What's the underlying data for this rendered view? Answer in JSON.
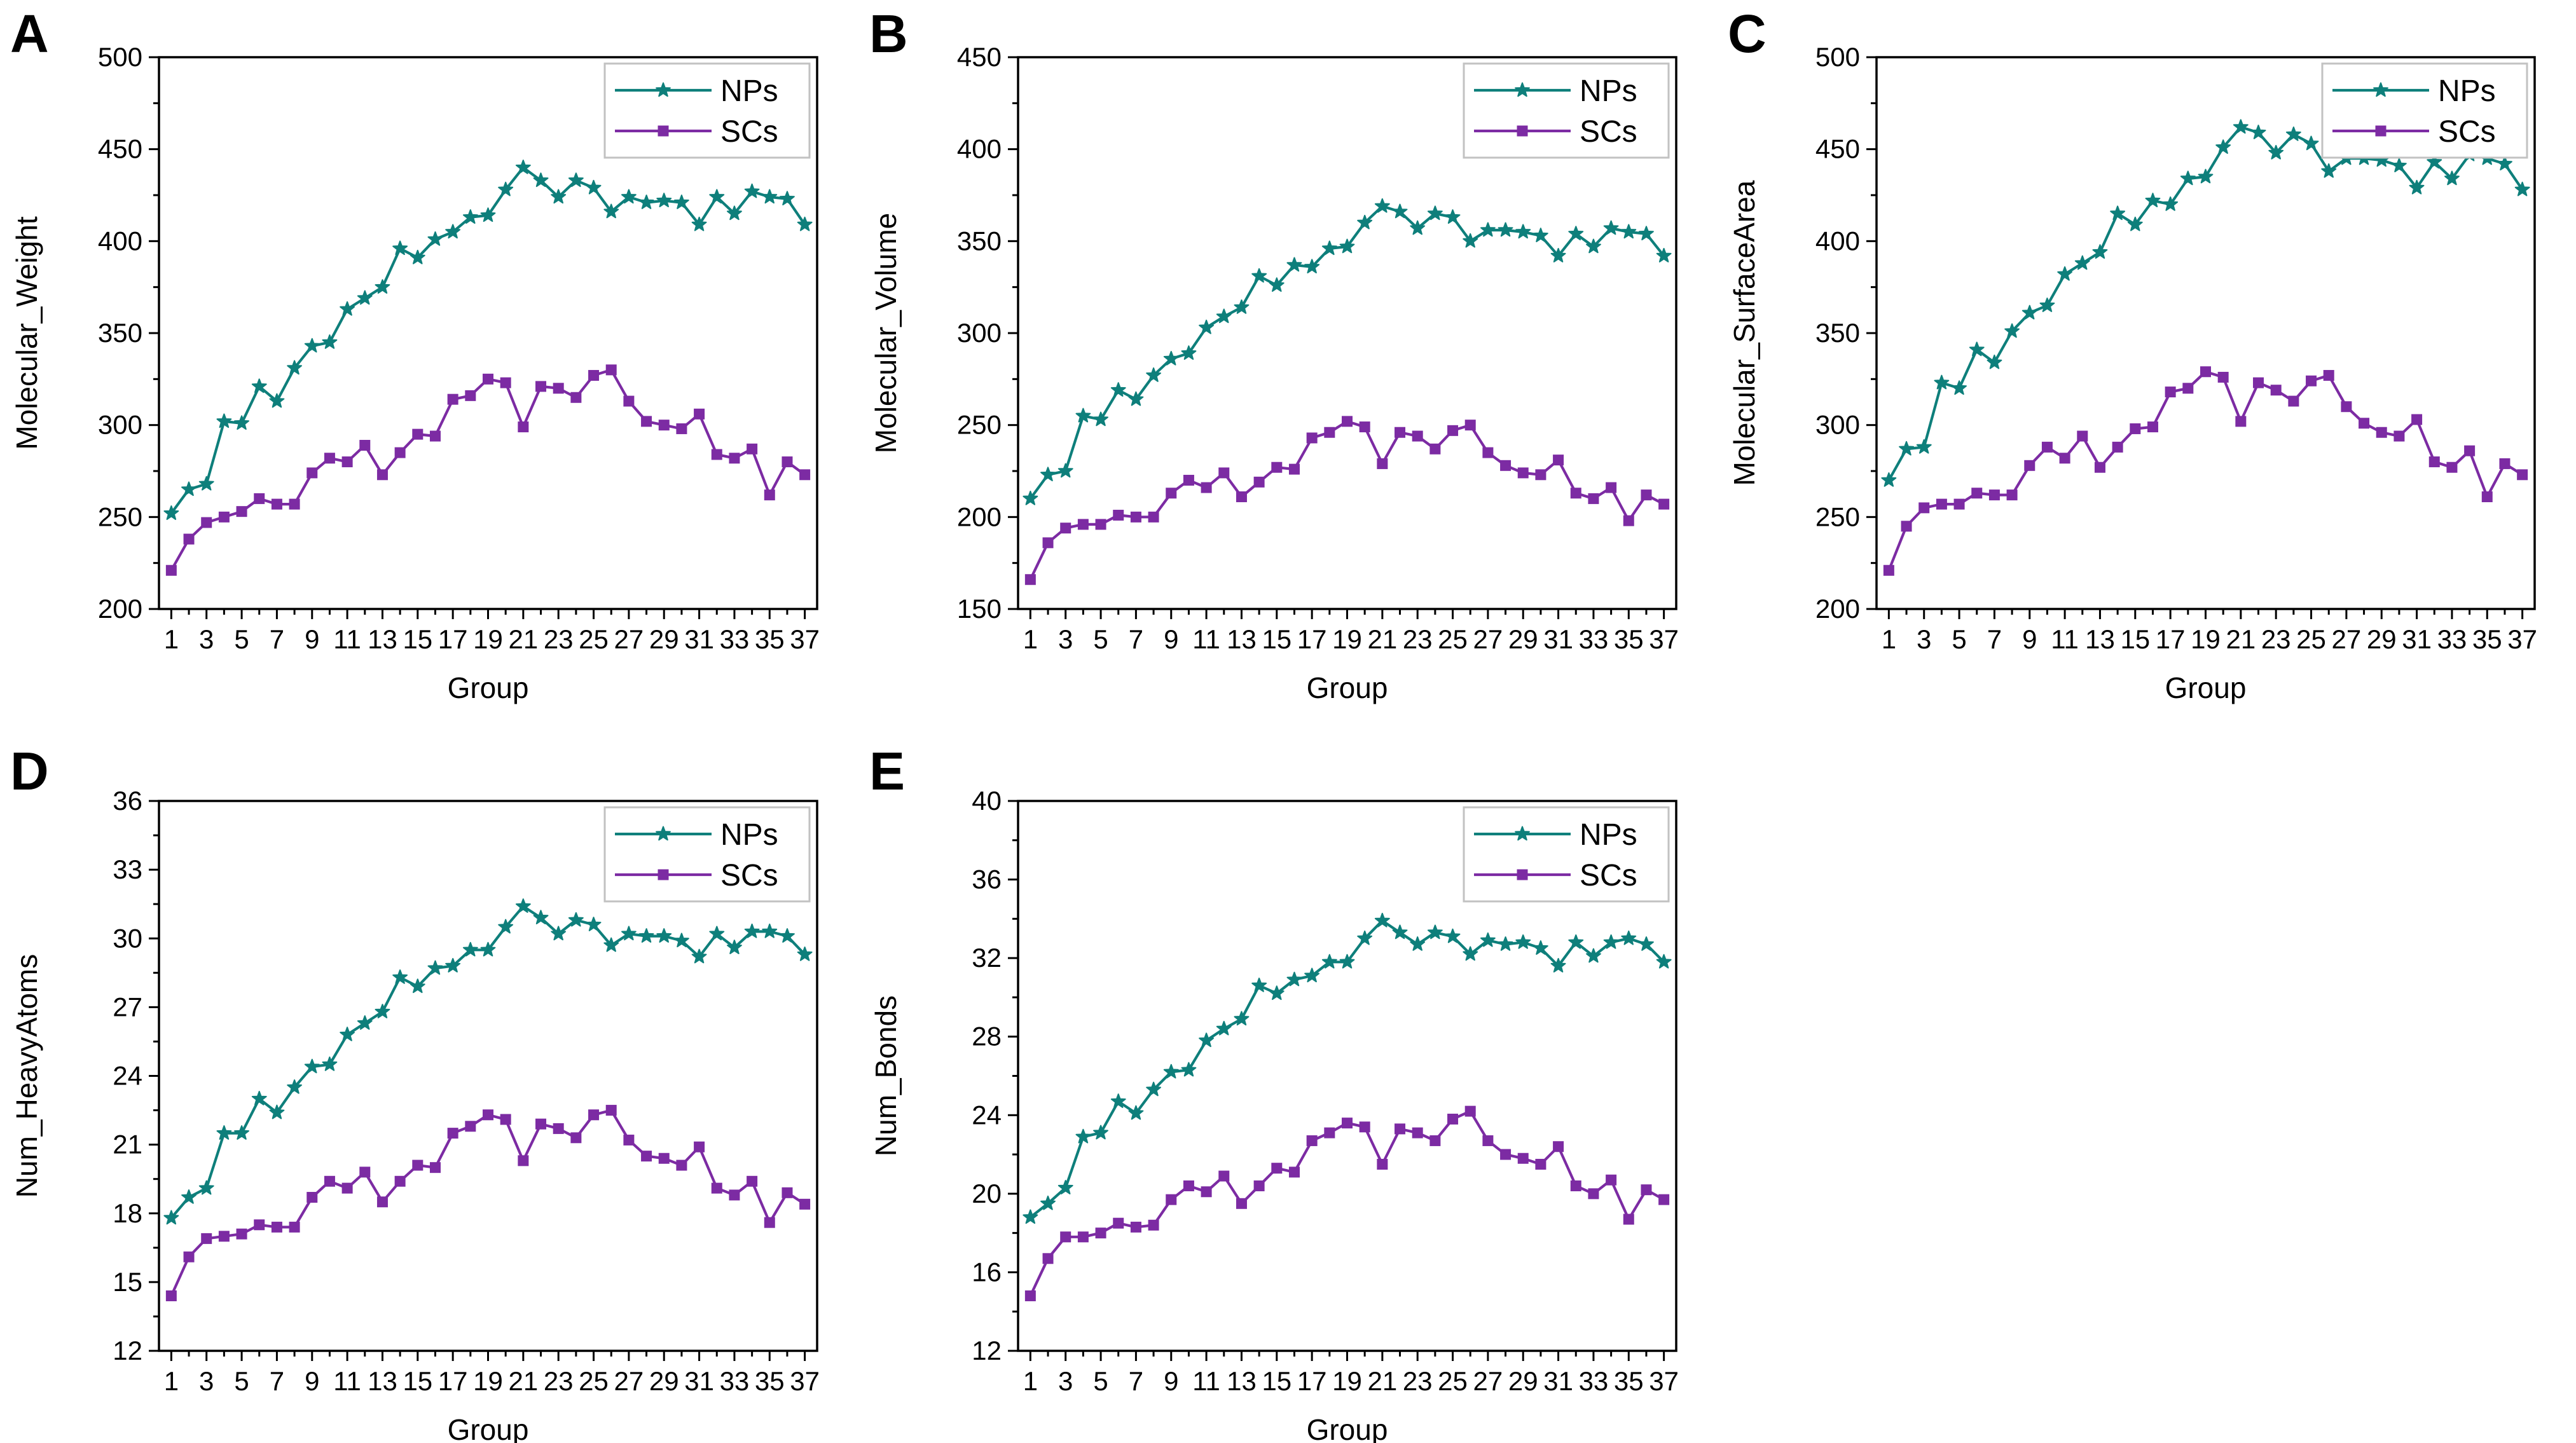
{
  "page": {
    "background": "#ffffff"
  },
  "colors": {
    "nps": "#0E7F7B",
    "scs": "#7C2BA3",
    "axis": "#000000",
    "text": "#000000",
    "legend_border": "#C2C2C2",
    "legend_fill": "#FFFFFF"
  },
  "legend": {
    "entries": [
      "NPs",
      "SCs"
    ],
    "position": "top-right"
  },
  "axis": {
    "xlabel": "Group",
    "x_major_tick_labels": [
      "1",
      "3",
      "5",
      "7",
      "9",
      "11",
      "13",
      "15",
      "17",
      "19",
      "21",
      "23",
      "25",
      "27",
      "29",
      "31",
      "33",
      "35",
      "37"
    ]
  },
  "chart_data": [
    {
      "type": "line",
      "panel_letter": "A",
      "ylabel": "Molecular_Weight",
      "xlabel": "Group",
      "ylim": [
        200,
        500
      ],
      "yticks": [
        200,
        250,
        300,
        350,
        400,
        450,
        500
      ],
      "grid": false,
      "legend_position": "top-right",
      "x": [
        1,
        2,
        3,
        4,
        5,
        6,
        7,
        8,
        9,
        10,
        11,
        12,
        13,
        14,
        15,
        16,
        17,
        18,
        19,
        20,
        21,
        22,
        23,
        24,
        25,
        26,
        27,
        28,
        29,
        30,
        31,
        32,
        33,
        34,
        35,
        36,
        37
      ],
      "series": [
        {
          "name": "NPs",
          "color_key": "nps",
          "marker": "star",
          "values": [
            252,
            265,
            268,
            302,
            301,
            321,
            313,
            331,
            343,
            345,
            363,
            369,
            375,
            396,
            391,
            401,
            405,
            413,
            414,
            428,
            440,
            433,
            424,
            433,
            429,
            416,
            424,
            421,
            422,
            421,
            409,
            424,
            415,
            427,
            424,
            423,
            409
          ]
        },
        {
          "name": "SCs",
          "color_key": "scs",
          "marker": "square",
          "values": [
            221,
            238,
            247,
            250,
            253,
            260,
            257,
            257,
            274,
            282,
            280,
            289,
            273,
            285,
            295,
            294,
            314,
            316,
            325,
            323,
            299,
            321,
            320,
            315,
            327,
            330,
            313,
            302,
            300,
            298,
            306,
            284,
            282,
            287,
            262,
            280,
            273
          ]
        }
      ]
    },
    {
      "type": "line",
      "panel_letter": "B",
      "ylabel": "Molecular_Volume",
      "xlabel": "Group",
      "ylim": [
        150,
        450
      ],
      "yticks": [
        150,
        200,
        250,
        300,
        350,
        400,
        450
      ],
      "grid": false,
      "legend_position": "top-right",
      "x": [
        1,
        2,
        3,
        4,
        5,
        6,
        7,
        8,
        9,
        10,
        11,
        12,
        13,
        14,
        15,
        16,
        17,
        18,
        19,
        20,
        21,
        22,
        23,
        24,
        25,
        26,
        27,
        28,
        29,
        30,
        31,
        32,
        33,
        34,
        35,
        36,
        37
      ],
      "series": [
        {
          "name": "NPs",
          "color_key": "nps",
          "marker": "star",
          "values": [
            210,
            223,
            225,
            255,
            253,
            269,
            264,
            277,
            286,
            289,
            303,
            309,
            314,
            331,
            326,
            337,
            336,
            346,
            347,
            360,
            369,
            366,
            357,
            365,
            363,
            350,
            356,
            356,
            355,
            353,
            342,
            354,
            347,
            357,
            355,
            354,
            342
          ]
        },
        {
          "name": "SCs",
          "color_key": "scs",
          "marker": "square",
          "values": [
            166,
            186,
            194,
            196,
            196,
            201,
            200,
            200,
            213,
            220,
            216,
            224,
            211,
            219,
            227,
            226,
            243,
            246,
            252,
            249,
            229,
            246,
            244,
            237,
            247,
            250,
            235,
            228,
            224,
            223,
            231,
            213,
            210,
            216,
            198,
            212,
            207
          ]
        }
      ]
    },
    {
      "type": "line",
      "panel_letter": "C",
      "ylabel": "Molecular_SurfaceArea",
      "xlabel": "Group",
      "ylim": [
        200,
        500
      ],
      "yticks": [
        200,
        250,
        300,
        350,
        400,
        450,
        500
      ],
      "grid": false,
      "legend_position": "top-right",
      "x": [
        1,
        2,
        3,
        4,
        5,
        6,
        7,
        8,
        9,
        10,
        11,
        12,
        13,
        14,
        15,
        16,
        17,
        18,
        19,
        20,
        21,
        22,
        23,
        24,
        25,
        26,
        27,
        28,
        29,
        30,
        31,
        32,
        33,
        34,
        35,
        36,
        37
      ],
      "series": [
        {
          "name": "NPs",
          "color_key": "nps",
          "marker": "star",
          "values": [
            270,
            287,
            288,
            323,
            320,
            341,
            334,
            351,
            361,
            365,
            382,
            388,
            394,
            415,
            409,
            422,
            420,
            434,
            435,
            451,
            462,
            459,
            448,
            458,
            453,
            438,
            445,
            445,
            444,
            441,
            429,
            443,
            434,
            447,
            445,
            442,
            428
          ]
        },
        {
          "name": "SCs",
          "color_key": "scs",
          "marker": "square",
          "values": [
            221,
            245,
            255,
            257,
            257,
            263,
            262,
            262,
            278,
            288,
            282,
            294,
            277,
            288,
            298,
            299,
            318,
            320,
            329,
            326,
            302,
            323,
            319,
            313,
            324,
            327,
            310,
            301,
            296,
            294,
            303,
            280,
            277,
            286,
            261,
            279,
            273
          ]
        }
      ]
    },
    {
      "type": "line",
      "panel_letter": "D",
      "ylabel": "Num_HeavyAtoms",
      "xlabel": "Group",
      "ylim": [
        12,
        36
      ],
      "yticks": [
        12,
        15,
        18,
        21,
        24,
        27,
        30,
        33,
        36
      ],
      "grid": false,
      "legend_position": "top-right",
      "x": [
        1,
        2,
        3,
        4,
        5,
        6,
        7,
        8,
        9,
        10,
        11,
        12,
        13,
        14,
        15,
        16,
        17,
        18,
        19,
        20,
        21,
        22,
        23,
        24,
        25,
        26,
        27,
        28,
        29,
        30,
        31,
        32,
        33,
        34,
        35,
        36,
        37
      ],
      "series": [
        {
          "name": "NPs",
          "color_key": "nps",
          "marker": "star",
          "values": [
            17.8,
            18.7,
            19.1,
            21.5,
            21.5,
            23.0,
            22.4,
            23.5,
            24.4,
            24.5,
            25.8,
            26.3,
            26.8,
            28.3,
            27.9,
            28.7,
            28.8,
            29.5,
            29.5,
            30.5,
            31.4,
            30.9,
            30.2,
            30.8,
            30.6,
            29.7,
            30.2,
            30.1,
            30.1,
            29.9,
            29.2,
            30.2,
            29.6,
            30.3,
            30.3,
            30.1,
            29.3
          ]
        },
        {
          "name": "SCs",
          "color_key": "scs",
          "marker": "square",
          "values": [
            14.4,
            16.1,
            16.9,
            17.0,
            17.1,
            17.5,
            17.4,
            17.4,
            18.7,
            19.4,
            19.1,
            19.8,
            18.5,
            19.4,
            20.1,
            20.0,
            21.5,
            21.8,
            22.3,
            22.1,
            20.3,
            21.9,
            21.7,
            21.3,
            22.3,
            22.5,
            21.2,
            20.5,
            20.4,
            20.1,
            20.9,
            19.1,
            18.8,
            19.4,
            17.6,
            18.9,
            18.4
          ]
        }
      ]
    },
    {
      "type": "line",
      "panel_letter": "E",
      "ylabel": "Num_Bonds",
      "xlabel": "Group",
      "ylim": [
        12,
        40
      ],
      "yticks": [
        12,
        16,
        20,
        24,
        28,
        32,
        36,
        40
      ],
      "grid": false,
      "legend_position": "top-right",
      "x": [
        1,
        2,
        3,
        4,
        5,
        6,
        7,
        8,
        9,
        10,
        11,
        12,
        13,
        14,
        15,
        16,
        17,
        18,
        19,
        20,
        21,
        22,
        23,
        24,
        25,
        26,
        27,
        28,
        29,
        30,
        31,
        32,
        33,
        34,
        35,
        36,
        37
      ],
      "series": [
        {
          "name": "NPs",
          "color_key": "nps",
          "marker": "star",
          "values": [
            18.8,
            19.5,
            20.3,
            22.9,
            23.1,
            24.7,
            24.1,
            25.3,
            26.2,
            26.3,
            27.8,
            28.4,
            28.9,
            30.6,
            30.2,
            30.9,
            31.1,
            31.8,
            31.8,
            33.0,
            33.9,
            33.3,
            32.7,
            33.3,
            33.1,
            32.2,
            32.9,
            32.7,
            32.8,
            32.5,
            31.6,
            32.8,
            32.1,
            32.8,
            33.0,
            32.7,
            31.8
          ]
        },
        {
          "name": "SCs",
          "color_key": "scs",
          "marker": "square",
          "values": [
            14.8,
            16.7,
            17.8,
            17.8,
            18.0,
            18.5,
            18.3,
            18.4,
            19.7,
            20.4,
            20.1,
            20.9,
            19.5,
            20.4,
            21.3,
            21.1,
            22.7,
            23.1,
            23.6,
            23.4,
            21.5,
            23.3,
            23.1,
            22.7,
            23.8,
            24.2,
            22.7,
            22.0,
            21.8,
            21.5,
            22.4,
            20.4,
            20.0,
            20.7,
            18.7,
            20.2,
            19.7
          ]
        }
      ]
    }
  ]
}
